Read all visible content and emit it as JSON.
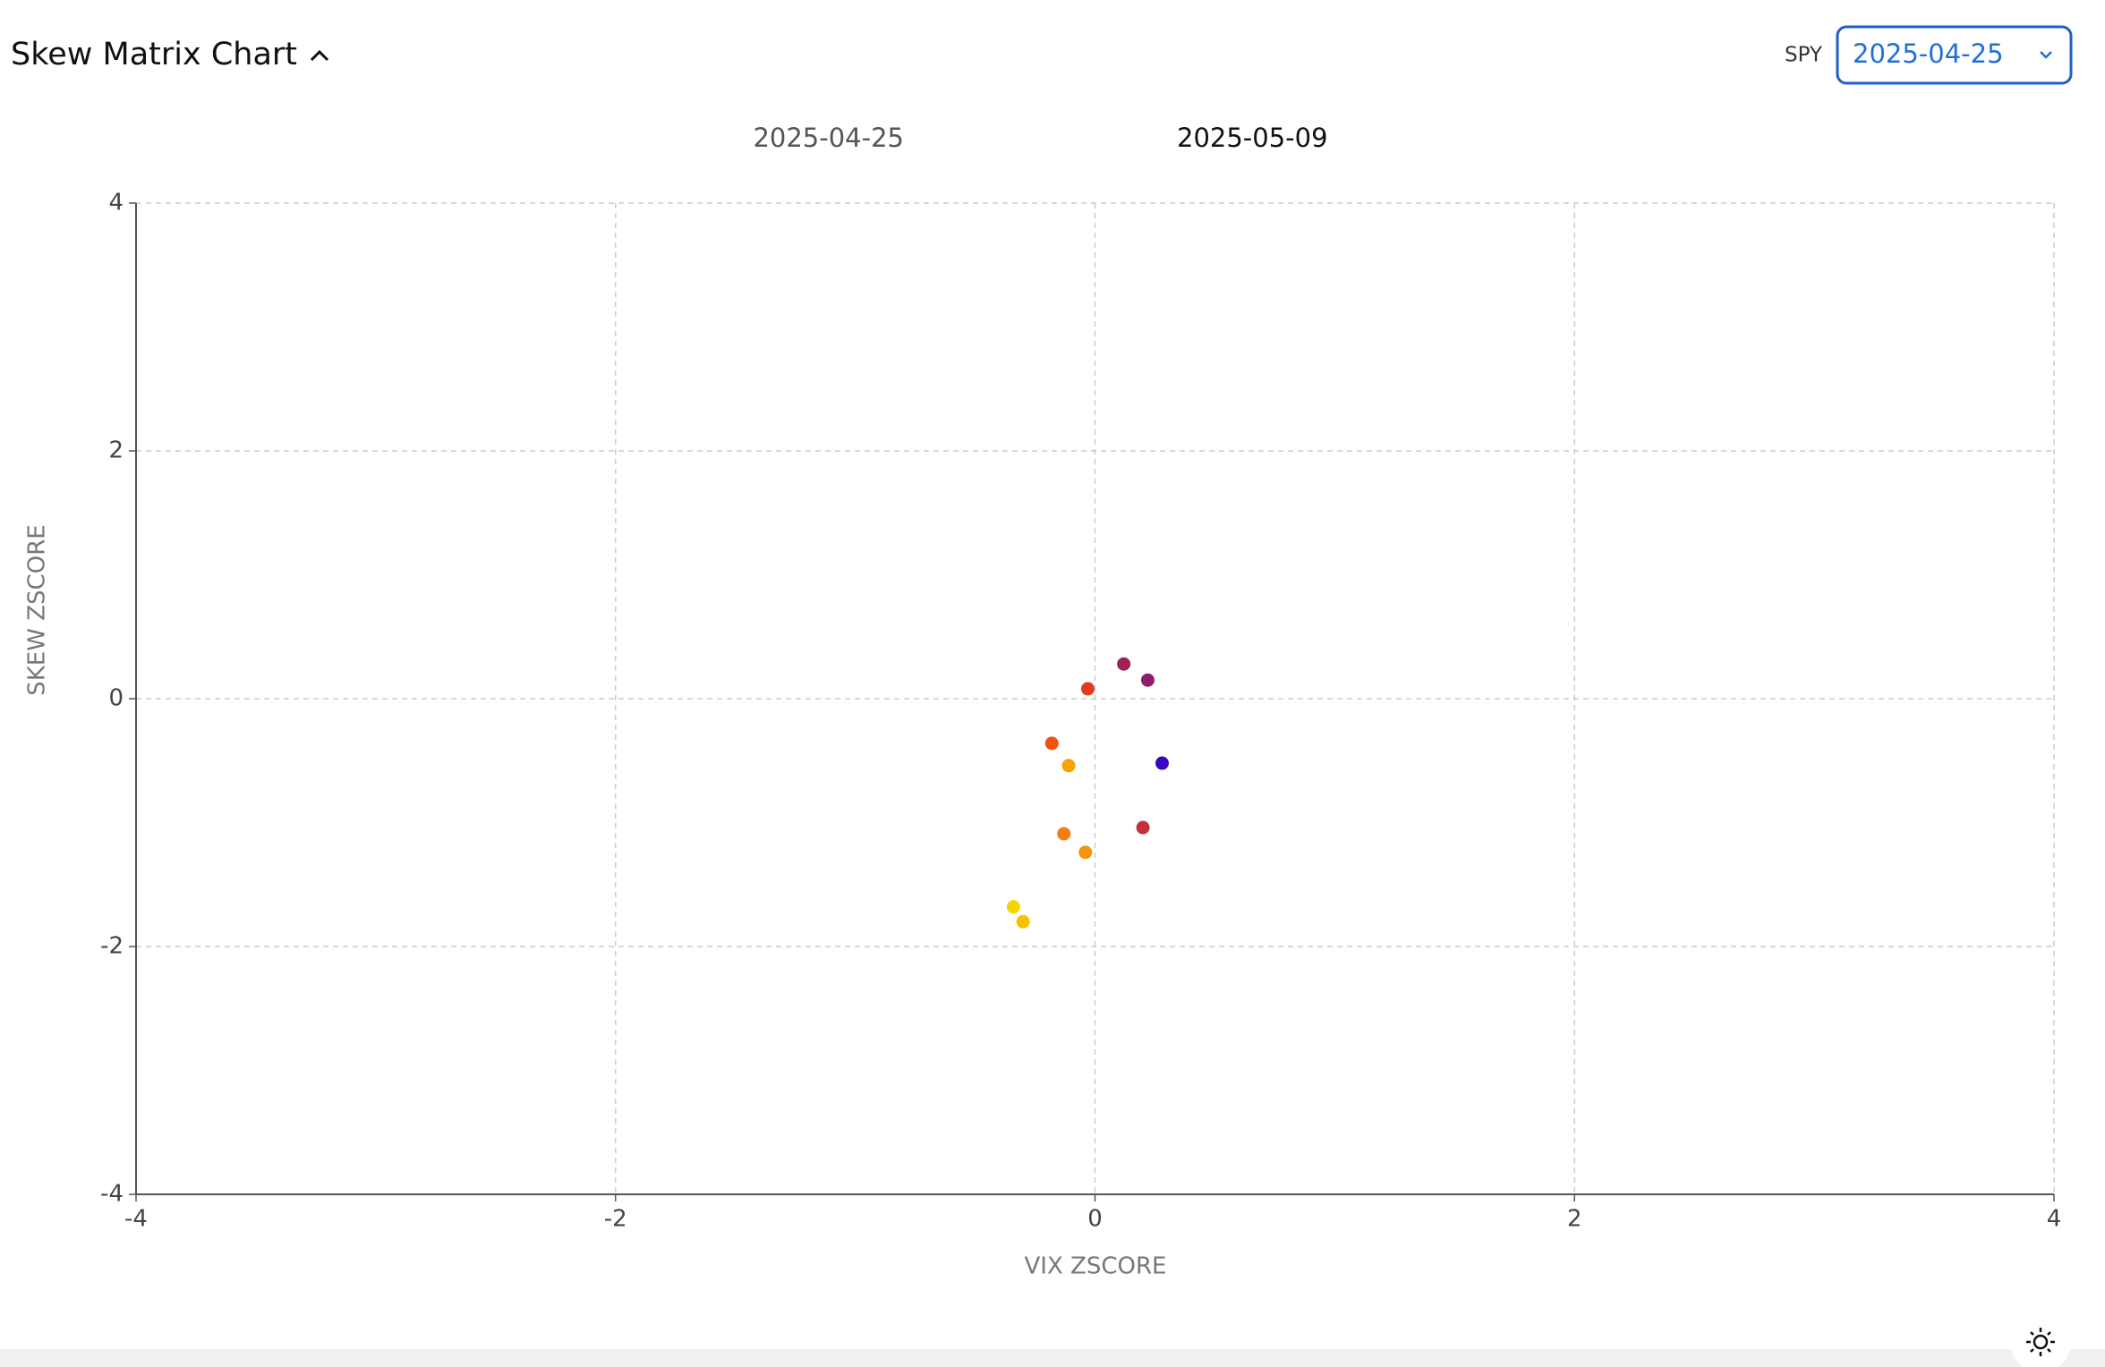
{
  "header": {
    "title": "Skew Matrix Chart",
    "ticker": "SPY",
    "date_select": "2025-04-25"
  },
  "chart_data": {
    "type": "scatter",
    "x_label": "VIX ZSCORE",
    "y_label": "SKEW ZSCORE",
    "colorbar_labels": [
      "2025-04-25",
      "2025-05-09"
    ],
    "colorscale": [
      "#2a5db0",
      "#f04a0c",
      "#ffc800"
    ],
    "x": [
      0.12,
      0.22,
      -0.03,
      -0.18,
      -0.11,
      0.28,
      0.2,
      -0.13,
      -0.04,
      -0.34,
      -0.3
    ],
    "y": [
      0.28,
      0.15,
      0.08,
      -0.36,
      -0.54,
      -0.52,
      -1.04,
      -1.09,
      -1.24,
      -1.68,
      -1.8
    ],
    "colors": [
      "#9b2355",
      "#8e1f6e",
      "#e23a1c",
      "#f2500e",
      "#f5a300",
      "#3a06c4",
      "#c3303a",
      "#f67c12",
      "#f69312",
      "#f6d400",
      "#f6c200"
    ],
    "xlim": [
      -4,
      4
    ],
    "ylim": [
      -4,
      4
    ],
    "xticks": [
      -4,
      -2,
      0,
      2,
      4
    ],
    "yticks": [
      -4,
      -2,
      0,
      2,
      4
    ],
    "grid": true
  }
}
